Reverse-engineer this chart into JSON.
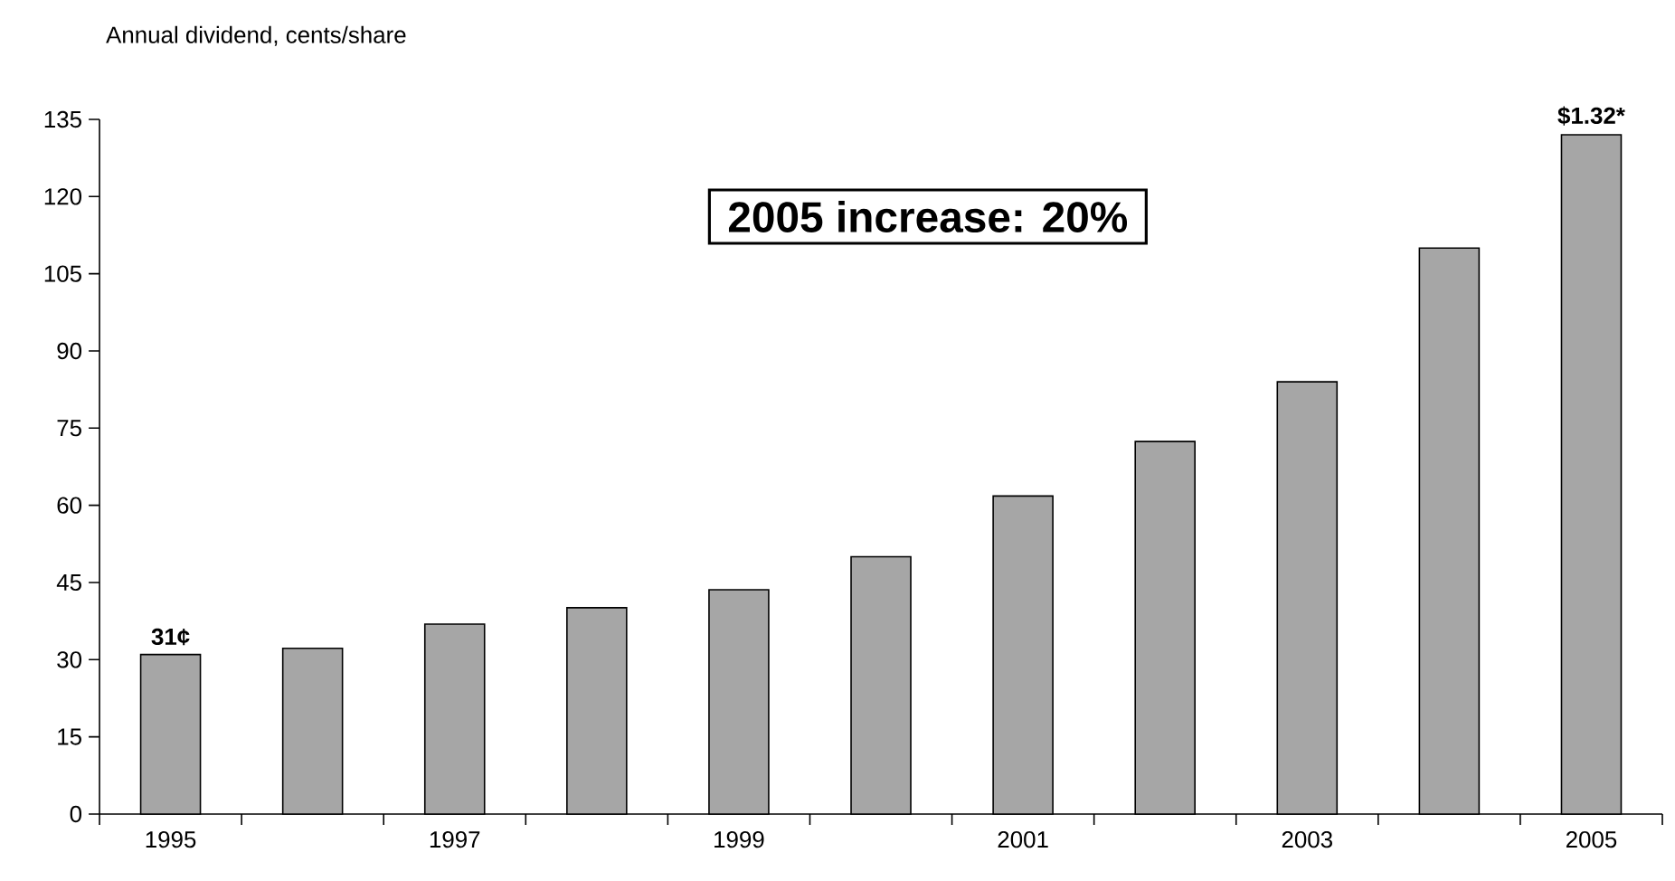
{
  "chart_data": {
    "type": "bar",
    "ylabel": "Annual dividend, cents/share",
    "categories": [
      "1995",
      null,
      "1997",
      null,
      "1999",
      null,
      "2001",
      null,
      "2003",
      null,
      "2005"
    ],
    "values": [
      31,
      32.2,
      36.9,
      40.1,
      43.6,
      50,
      61.8,
      72.4,
      84,
      110,
      132
    ],
    "color": "#a6a6a6",
    "ylim": [
      0,
      135
    ],
    "yticks": [
      0,
      15,
      30,
      45,
      60,
      75,
      90,
      105,
      120,
      135
    ],
    "annotations": [
      "2005 increase: 20%",
      {
        "text": "31¢",
        "x": "1995",
        "y": 31
      },
      {
        "text": "$1.32*",
        "x": "2005",
        "y": 132
      }
    ],
    "grid": false
  }
}
